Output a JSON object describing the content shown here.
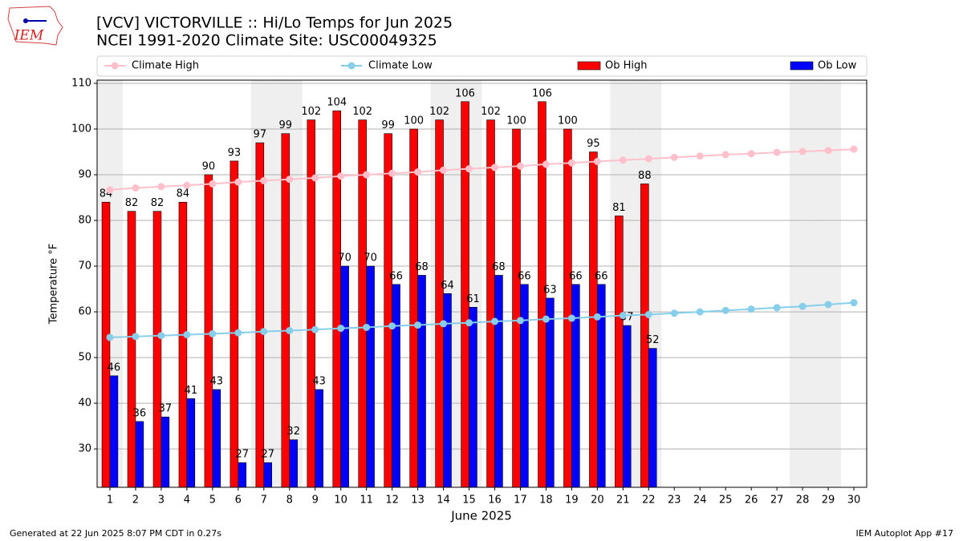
{
  "chart_data": {
    "type": "bar",
    "title": "[VCV] VICTORVILLE :: Hi/Lo Temps for Jun 2025",
    "subtitle": "NCEI 1991-2020 Climate Site: USC00049325",
    "logo_text": "IEM",
    "x_label": "June 2025",
    "y_label": "Temperature °F",
    "footer_left": "Generated at 22 Jun 2025 8:07 PM CDT in 0.27s",
    "footer_right": "IEM Autoplot App #17",
    "x": [
      1,
      2,
      3,
      4,
      5,
      6,
      7,
      8,
      9,
      10,
      11,
      12,
      13,
      14,
      15,
      16,
      17,
      18,
      19,
      20,
      21,
      22,
      23,
      24,
      25,
      26,
      27,
      28,
      29,
      30
    ],
    "xlim": [
      0.5,
      30.5
    ],
    "xticks": [
      1,
      2,
      3,
      4,
      5,
      6,
      7,
      8,
      9,
      10,
      11,
      12,
      13,
      14,
      15,
      16,
      17,
      18,
      19,
      20,
      21,
      22,
      23,
      24,
      25,
      26,
      27,
      28,
      29,
      30
    ],
    "ylim": [
      21.6,
      110.7
    ],
    "yticks": [
      30,
      40,
      50,
      60,
      70,
      80,
      90,
      100,
      110
    ],
    "grid": true,
    "legend": "top",
    "shaded_days": [
      1,
      7,
      8,
      14,
      15,
      21,
      22,
      28,
      29
    ],
    "shade_color": "#efefef",
    "series": [
      {
        "name": "Climate High",
        "type": "line",
        "color": "#ffc0cb",
        "values": [
          86.7,
          87.1,
          87.4,
          87.7,
          88.0,
          88.4,
          88.7,
          89.0,
          89.3,
          89.7,
          90.0,
          90.3,
          90.6,
          91.0,
          91.3,
          91.6,
          91.9,
          92.3,
          92.6,
          92.9,
          93.2,
          93.5,
          93.8,
          94.1,
          94.4,
          94.6,
          94.9,
          95.1,
          95.3,
          95.6
        ]
      },
      {
        "name": "Climate Low",
        "type": "line",
        "color": "#87ceeb",
        "values": [
          54.4,
          54.6,
          54.8,
          55.0,
          55.2,
          55.4,
          55.7,
          55.9,
          56.1,
          56.4,
          56.6,
          56.9,
          57.1,
          57.4,
          57.6,
          57.9,
          58.1,
          58.4,
          58.6,
          58.9,
          59.2,
          59.4,
          59.7,
          60.0,
          60.3,
          60.6,
          60.9,
          61.2,
          61.6,
          62.0
        ]
      },
      {
        "name": "Ob High",
        "type": "bar",
        "color": "#ff0000",
        "values": [
          84,
          82,
          82,
          84,
          90,
          93,
          97,
          99,
          102,
          104,
          102,
          99,
          100,
          102,
          106,
          102,
          100,
          106,
          100,
          95,
          81,
          88,
          null,
          null,
          null,
          null,
          null,
          null,
          null,
          null
        ]
      },
      {
        "name": "Ob Low",
        "type": "bar",
        "color": "#0000ff",
        "values": [
          46,
          36,
          37,
          41,
          43,
          27,
          27,
          32,
          43,
          70,
          70,
          66,
          68,
          64,
          61,
          68,
          66,
          63,
          66,
          66,
          57,
          52,
          null,
          null,
          null,
          null,
          null,
          null,
          null,
          null
        ]
      }
    ]
  }
}
